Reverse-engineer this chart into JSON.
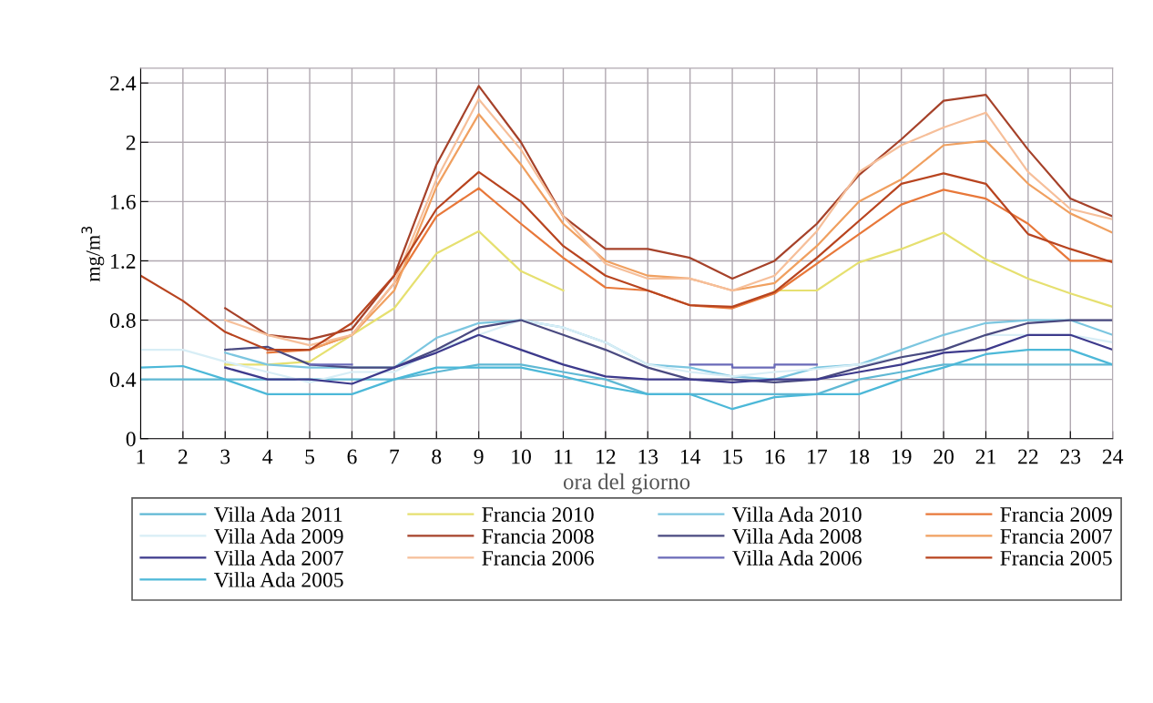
{
  "chart_data": {
    "type": "line",
    "xlabel": "ora del giorno",
    "ylabel": "mg/m$^{3}$",
    "x": [
      1,
      2,
      3,
      4,
      5,
      6,
      7,
      8,
      9,
      10,
      11,
      12,
      13,
      14,
      15,
      16,
      17,
      18,
      19,
      20,
      21,
      22,
      23,
      24
    ],
    "xlim": [
      1,
      24
    ],
    "xticks": [
      1,
      2,
      3,
      4,
      5,
      6,
      7,
      8,
      9,
      10,
      11,
      12,
      13,
      14,
      15,
      16,
      17,
      18,
      19,
      20,
      21,
      22,
      23,
      24
    ],
    "ylim": [
      0,
      2.5
    ],
    "yticks": [
      0,
      0.4,
      0.8,
      1.2,
      1.6,
      2,
      2.4
    ],
    "grid": true,
    "legend": "bottom",
    "marker": "none",
    "line_style": "solid",
    "series": [
      {
        "name": "Villa Ada 2011",
        "color": "#5fb8d4",
        "values": [
          0.4,
          0.4,
          0.4,
          0.4,
          0.4,
          0.4,
          0.4,
          0.45,
          0.5,
          0.5,
          0.45,
          0.4,
          0.3,
          0.3,
          0.3,
          0.3,
          0.3,
          0.4,
          0.45,
          0.5,
          0.5,
          0.5,
          0.5,
          0.5
        ]
      },
      {
        "name": "Francia 2010",
        "color": "#e6e070",
        "values": [
          null,
          null,
          0.5,
          0.5,
          0.52,
          0.7,
          0.88,
          1.25,
          1.4,
          1.13,
          1.0,
          null,
          null,
          null,
          null,
          1.0,
          1.0,
          1.19,
          1.28,
          1.39,
          1.21,
          1.08,
          0.98,
          0.89
        ]
      },
      {
        "name": "Villa Ada 2010",
        "color": "#7cc6e0",
        "values": [
          null,
          null,
          0.58,
          0.5,
          0.48,
          0.48,
          0.48,
          0.68,
          0.78,
          0.8,
          0.75,
          0.65,
          0.5,
          0.48,
          0.42,
          0.4,
          0.48,
          0.5,
          0.6,
          0.7,
          0.78,
          0.8,
          0.8,
          0.7
        ]
      },
      {
        "name": "Francia 2009",
        "color": "#e8783a",
        "values": [
          null,
          null,
          null,
          0.58,
          0.6,
          0.7,
          1.05,
          1.5,
          1.69,
          1.45,
          1.22,
          1.02,
          1.0,
          0.9,
          0.88,
          0.98,
          1.18,
          1.38,
          1.58,
          1.68,
          1.62,
          1.45,
          1.2,
          1.2
        ]
      },
      {
        "name": "Villa Ada 2009",
        "color": "#d8eef6",
        "values": [
          0.6,
          0.6,
          0.52,
          0.45,
          0.38,
          0.45,
          0.45,
          0.6,
          0.7,
          0.8,
          0.75,
          0.65,
          0.5,
          0.45,
          0.42,
          0.45,
          0.47,
          0.5,
          0.55,
          0.6,
          0.7,
          0.7,
          0.7,
          0.65
        ]
      },
      {
        "name": "Francia 2008",
        "color": "#a6422a",
        "values": [
          null,
          null,
          0.88,
          0.7,
          0.67,
          0.74,
          1.1,
          1.85,
          2.38,
          2.0,
          1.5,
          1.28,
          1.28,
          1.22,
          1.08,
          1.2,
          1.45,
          1.78,
          2.02,
          2.28,
          2.32,
          1.95,
          1.62,
          1.5
        ]
      },
      {
        "name": "Villa Ada 2008",
        "color": "#4a4a80",
        "values": [
          null,
          null,
          0.6,
          0.62,
          0.5,
          0.48,
          0.48,
          0.6,
          0.75,
          0.8,
          0.7,
          0.6,
          0.48,
          0.4,
          0.4,
          0.38,
          0.4,
          0.48,
          0.55,
          0.6,
          0.7,
          0.78,
          0.8,
          0.8
        ]
      },
      {
        "name": "Francia 2007",
        "color": "#f0a060",
        "values": [
          null,
          null,
          null,
          null,
          0.6,
          0.7,
          1.0,
          1.7,
          2.19,
          1.85,
          1.45,
          1.2,
          1.1,
          1.08,
          1.0,
          1.05,
          1.3,
          1.6,
          1.75,
          1.98,
          2.01,
          1.72,
          1.52,
          1.39
        ]
      },
      {
        "name": "Villa Ada 2007",
        "color": "#3d3a8c",
        "values": [
          null,
          null,
          0.48,
          0.4,
          0.4,
          0.37,
          0.48,
          0.58,
          0.7,
          0.6,
          0.5,
          0.42,
          0.4,
          0.4,
          0.38,
          0.4,
          0.4,
          0.45,
          0.5,
          0.58,
          0.6,
          0.7,
          0.7,
          0.6
        ]
      },
      {
        "name": "Francia 2006",
        "color": "#f6bf9a",
        "values": [
          null,
          null,
          0.8,
          0.7,
          0.63,
          0.7,
          1.05,
          1.75,
          2.29,
          1.95,
          1.5,
          1.18,
          1.08,
          1.08,
          1.0,
          1.1,
          1.4,
          1.8,
          1.98,
          2.1,
          2.2,
          1.8,
          1.55,
          1.48
        ]
      },
      {
        "name": "Villa Ada 2006",
        "color": "#6a6ab8",
        "x": [
          5,
          6,
          6.5,
          14,
          15,
          15,
          16,
          16,
          17
        ],
        "values": [
          0.5,
          0.5,
          null,
          0.5,
          0.5,
          0.48,
          0.48,
          0.5,
          0.5
        ]
      },
      {
        "name": "Francia 2005",
        "color": "#b8441f",
        "values": [
          1.1,
          0.93,
          0.72,
          0.6,
          0.6,
          0.78,
          1.1,
          1.55,
          1.8,
          1.6,
          1.3,
          1.1,
          1.0,
          0.9,
          0.89,
          0.99,
          1.22,
          1.47,
          1.72,
          1.79,
          1.72,
          1.38,
          1.28,
          1.19
        ]
      },
      {
        "name": "Villa Ada 2005",
        "color": "#4cb8d8",
        "values": [
          0.48,
          0.49,
          0.4,
          0.3,
          0.3,
          0.3,
          0.4,
          0.48,
          0.48,
          0.48,
          0.42,
          0.35,
          0.3,
          0.3,
          0.2,
          0.28,
          0.3,
          0.3,
          0.4,
          0.48,
          0.57,
          0.6,
          0.6,
          0.5
        ]
      }
    ]
  }
}
